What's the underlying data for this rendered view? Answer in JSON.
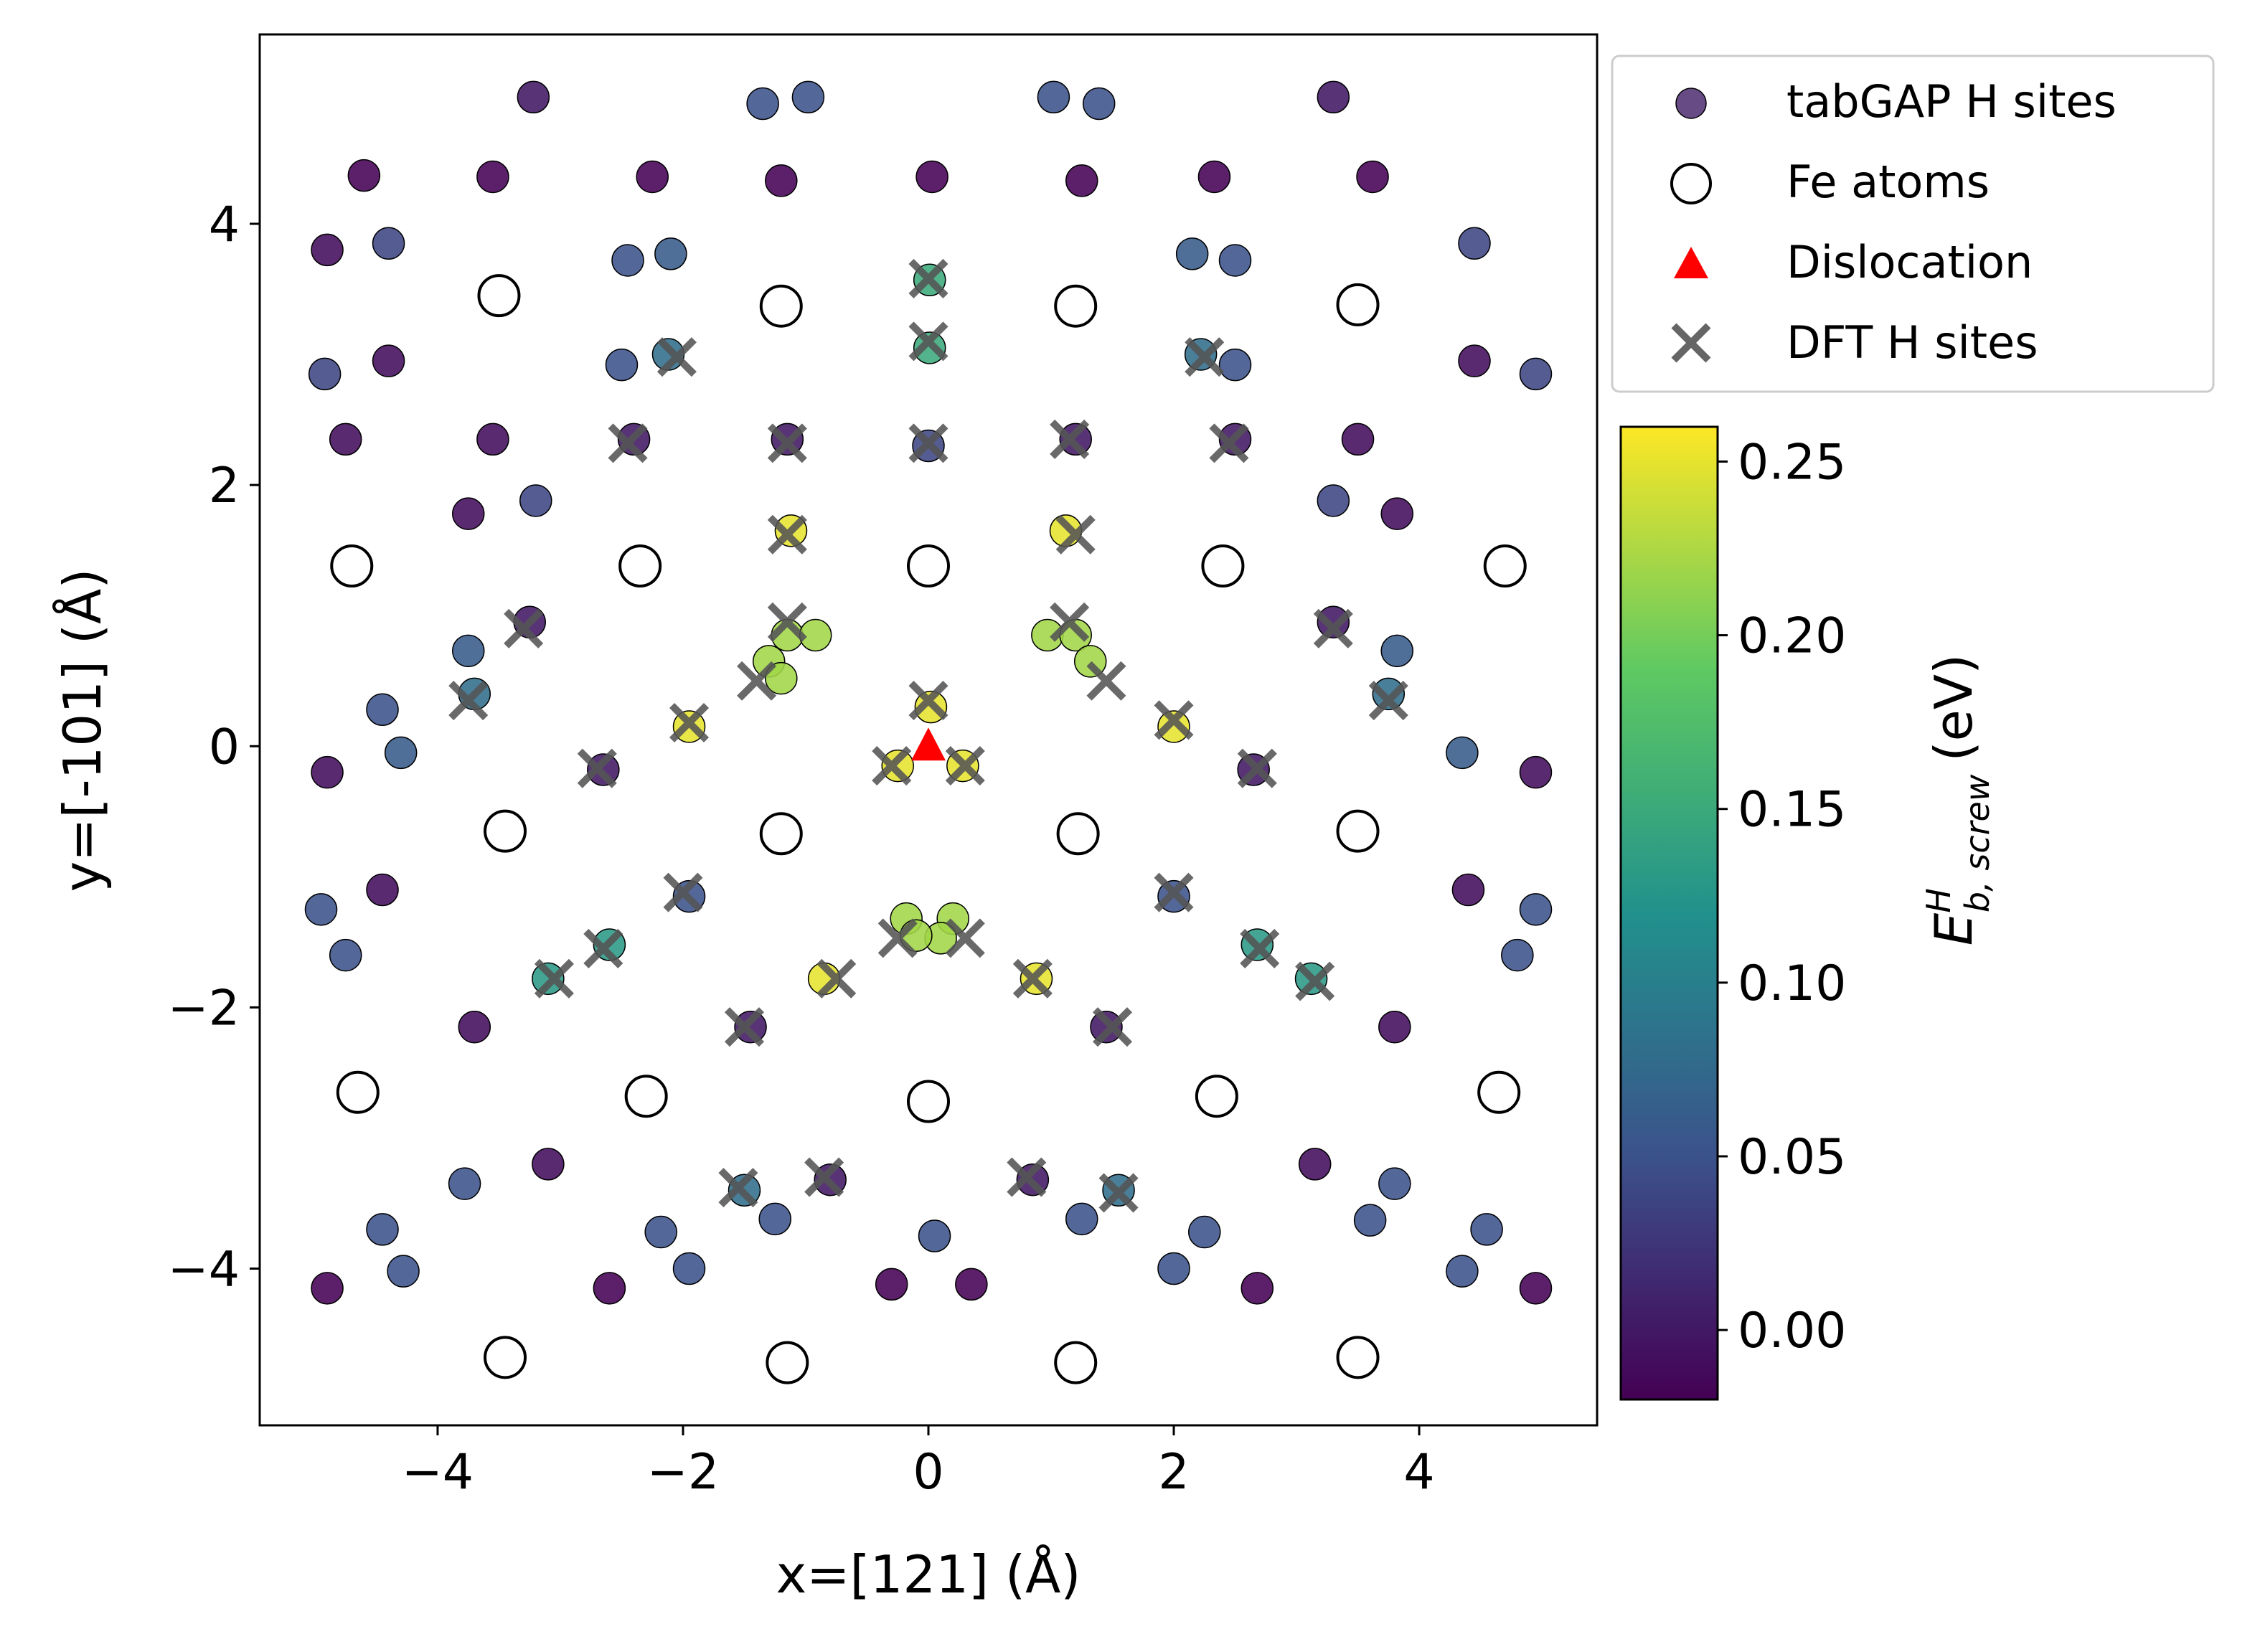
{
  "chart_data": {
    "type": "scatter",
    "xlabel": "x=[121] (Å)",
    "ylabel": "y=[-101] (Å)",
    "xlim": [
      -5.45,
      5.45
    ],
    "ylim": [
      -5.2,
      5.45
    ],
    "xticks": [
      -4,
      -2,
      0,
      2,
      4
    ],
    "yticks": [
      -4,
      -2,
      0,
      2,
      4
    ],
    "xtick_labels": [
      "−4",
      "−2",
      "0",
      "2",
      "4"
    ],
    "ytick_labels": [
      "−4",
      "−2",
      "0",
      "2",
      "4"
    ],
    "legend": {
      "placement": "upper-right outside",
      "entries": [
        "tabGAP H sites",
        "Fe atoms",
        "Dislocation",
        "DFT H sites"
      ]
    },
    "colorbar": {
      "label_base": "E",
      "label_sup": "H",
      "label_sub": "b, screw",
      "label_unit": "(eV)",
      "range": [
        -0.02,
        0.26
      ],
      "ticks": [
        0.0,
        0.05,
        0.1,
        0.15,
        0.2,
        0.25
      ],
      "tick_labels": [
        "0.00",
        "0.05",
        "0.10",
        "0.15",
        "0.20",
        "0.25"
      ],
      "colors": [
        "#440154",
        "#3b528b",
        "#21918c",
        "#5ec962",
        "#fde725"
      ]
    },
    "series": [
      {
        "name": "tabGAP H sites",
        "points": [
          [
            -3.22,
            4.97,
            0.0
          ],
          [
            -1.35,
            4.92,
            0.05
          ],
          [
            -0.98,
            4.97,
            0.05
          ],
          [
            1.02,
            4.97,
            0.05
          ],
          [
            1.39,
            4.92,
            0.05
          ],
          [
            3.3,
            4.97,
            0.0
          ],
          [
            -4.6,
            4.37,
            -0.02
          ],
          [
            -3.55,
            4.36,
            -0.02
          ],
          [
            -2.25,
            4.36,
            -0.02
          ],
          [
            -1.2,
            4.33,
            -0.02
          ],
          [
            0.03,
            4.36,
            -0.02
          ],
          [
            1.25,
            4.33,
            -0.02
          ],
          [
            2.33,
            4.36,
            -0.02
          ],
          [
            3.62,
            4.36,
            -0.02
          ],
          [
            -4.9,
            3.8,
            -0.01
          ],
          [
            -4.4,
            3.85,
            0.04
          ],
          [
            -2.45,
            3.72,
            0.05
          ],
          [
            -2.1,
            3.77,
            0.06
          ],
          [
            2.15,
            3.77,
            0.06
          ],
          [
            2.5,
            3.72,
            0.05
          ],
          [
            4.45,
            3.85,
            0.04
          ],
          [
            0.01,
            3.57,
            0.15
          ],
          [
            0.01,
            3.05,
            0.15
          ],
          [
            -2.12,
            3.0,
            0.08
          ],
          [
            2.22,
            3.0,
            0.08
          ],
          [
            -4.92,
            2.85,
            0.04
          ],
          [
            -4.4,
            2.95,
            -0.01
          ],
          [
            -2.5,
            2.92,
            0.05
          ],
          [
            2.5,
            2.92,
            0.05
          ],
          [
            4.45,
            2.95,
            -0.01
          ],
          [
            4.95,
            2.85,
            0.04
          ],
          [
            -4.75,
            2.35,
            -0.01
          ],
          [
            -3.55,
            2.35,
            -0.01
          ],
          [
            -2.4,
            2.35,
            0.0
          ],
          [
            -1.15,
            2.35,
            0.0
          ],
          [
            0.0,
            2.3,
            0.04
          ],
          [
            1.2,
            2.35,
            0.0
          ],
          [
            2.5,
            2.35,
            0.0
          ],
          [
            3.5,
            2.35,
            -0.01
          ],
          [
            -3.75,
            1.78,
            -0.01
          ],
          [
            -3.2,
            1.88,
            0.04
          ],
          [
            3.3,
            1.88,
            0.04
          ],
          [
            3.82,
            1.78,
            -0.01
          ],
          [
            -1.12,
            1.65,
            0.25
          ],
          [
            1.12,
            1.65,
            0.25
          ],
          [
            -3.25,
            0.95,
            0.0
          ],
          [
            3.3,
            0.95,
            0.0
          ],
          [
            -1.15,
            0.85,
            0.22
          ],
          [
            -0.92,
            0.85,
            0.22
          ],
          [
            0.97,
            0.85,
            0.22
          ],
          [
            1.2,
            0.85,
            0.22
          ],
          [
            -1.3,
            0.65,
            0.22
          ],
          [
            1.32,
            0.65,
            0.22
          ],
          [
            -1.2,
            0.52,
            0.22
          ],
          [
            -3.75,
            0.73,
            0.06
          ],
          [
            3.82,
            0.73,
            0.06
          ],
          [
            -3.7,
            0.4,
            0.08
          ],
          [
            3.75,
            0.4,
            0.08
          ],
          [
            -4.45,
            0.28,
            0.05
          ],
          [
            0.02,
            0.3,
            0.25
          ],
          [
            -1.95,
            0.15,
            0.25
          ],
          [
            2.0,
            0.15,
            0.25
          ],
          [
            -4.3,
            -0.05,
            0.06
          ],
          [
            4.35,
            -0.05,
            0.06
          ],
          [
            -4.9,
            -0.2,
            -0.01
          ],
          [
            -2.65,
            -0.18,
            0.0
          ],
          [
            -0.25,
            -0.15,
            0.25
          ],
          [
            0.28,
            -0.15,
            0.25
          ],
          [
            2.65,
            -0.18,
            0.0
          ],
          [
            4.95,
            -0.2,
            -0.01
          ],
          [
            -4.45,
            -1.1,
            -0.01
          ],
          [
            -1.95,
            -1.15,
            0.05
          ],
          [
            2.0,
            -1.15,
            0.05
          ],
          [
            4.4,
            -1.1,
            -0.01
          ],
          [
            -4.95,
            -1.25,
            0.05
          ],
          [
            4.95,
            -1.25,
            0.05
          ],
          [
            -4.75,
            -1.6,
            0.05
          ],
          [
            4.8,
            -1.6,
            0.05
          ],
          [
            -0.18,
            -1.32,
            0.22
          ],
          [
            0.2,
            -1.32,
            0.22
          ],
          [
            0.1,
            -1.47,
            0.22
          ],
          [
            -0.1,
            -1.45,
            0.22
          ],
          [
            -2.6,
            -1.52,
            0.13
          ],
          [
            2.68,
            -1.52,
            0.13
          ],
          [
            -3.1,
            -1.78,
            0.13
          ],
          [
            3.12,
            -1.78,
            0.13
          ],
          [
            -0.85,
            -1.78,
            0.25
          ],
          [
            0.88,
            -1.78,
            0.25
          ],
          [
            -3.7,
            -2.15,
            -0.01
          ],
          [
            -1.45,
            -2.15,
            0.0
          ],
          [
            1.45,
            -2.15,
            0.0
          ],
          [
            3.8,
            -2.15,
            -0.01
          ],
          [
            -3.1,
            -3.2,
            -0.01
          ],
          [
            3.15,
            -3.2,
            -0.01
          ],
          [
            -0.8,
            -3.32,
            0.0
          ],
          [
            0.85,
            -3.32,
            0.0
          ],
          [
            -3.78,
            -3.35,
            0.05
          ],
          [
            3.8,
            -3.35,
            0.05
          ],
          [
            -1.5,
            -3.4,
            0.08
          ],
          [
            1.55,
            -3.4,
            0.08
          ],
          [
            -1.25,
            -3.62,
            0.05
          ],
          [
            1.25,
            -3.62,
            0.05
          ],
          [
            -4.45,
            -3.7,
            0.05
          ],
          [
            -2.18,
            -3.72,
            0.05
          ],
          [
            0.05,
            -3.75,
            0.05
          ],
          [
            2.25,
            -3.72,
            0.05
          ],
          [
            3.6,
            -3.63,
            0.05
          ],
          [
            4.55,
            -3.7,
            0.05
          ],
          [
            -4.28,
            -4.02,
            0.05
          ],
          [
            -1.95,
            -4.0,
            0.05
          ],
          [
            2.0,
            -4.0,
            0.05
          ],
          [
            4.35,
            -4.02,
            0.05
          ],
          [
            -4.9,
            -4.15,
            -0.02
          ],
          [
            -2.6,
            -4.15,
            -0.02
          ],
          [
            -0.3,
            -4.12,
            -0.02
          ],
          [
            0.35,
            -4.12,
            -0.02
          ],
          [
            2.68,
            -4.15,
            -0.02
          ],
          [
            4.95,
            -4.15,
            -0.02
          ]
        ]
      },
      {
        "name": "Fe atoms",
        "points": [
          [
            -3.5,
            3.45
          ],
          [
            -1.2,
            3.37
          ],
          [
            1.2,
            3.37
          ],
          [
            3.5,
            3.38
          ],
          [
            -4.7,
            1.38
          ],
          [
            -2.35,
            1.38
          ],
          [
            0.0,
            1.38
          ],
          [
            2.4,
            1.38
          ],
          [
            4.7,
            1.38
          ],
          [
            -3.45,
            -0.65
          ],
          [
            -1.2,
            -0.67
          ],
          [
            1.22,
            -0.67
          ],
          [
            3.5,
            -0.65
          ],
          [
            -4.65,
            -2.65
          ],
          [
            -2.3,
            -2.68
          ],
          [
            0.0,
            -2.72
          ],
          [
            2.35,
            -2.68
          ],
          [
            4.65,
            -2.65
          ],
          [
            -3.45,
            -4.68
          ],
          [
            -1.15,
            -4.72
          ],
          [
            1.2,
            -4.72
          ],
          [
            3.5,
            -4.68
          ]
        ]
      },
      {
        "name": "Dislocation",
        "points": [
          [
            0.0,
            0.0
          ]
        ]
      },
      {
        "name": "DFT H sites",
        "points": [
          [
            0.0,
            3.58
          ],
          [
            0.0,
            3.1
          ],
          [
            -2.05,
            2.98
          ],
          [
            2.25,
            2.98
          ],
          [
            -2.45,
            2.32
          ],
          [
            -1.15,
            2.32
          ],
          [
            0.0,
            2.32
          ],
          [
            1.15,
            2.35
          ],
          [
            2.45,
            2.32
          ],
          [
            -1.15,
            1.62
          ],
          [
            1.2,
            1.62
          ],
          [
            -1.15,
            0.95
          ],
          [
            1.15,
            0.95
          ],
          [
            -3.3,
            0.9
          ],
          [
            3.3,
            0.9
          ],
          [
            -1.4,
            0.5
          ],
          [
            1.45,
            0.5
          ],
          [
            -3.75,
            0.35
          ],
          [
            3.75,
            0.35
          ],
          [
            0.0,
            0.35
          ],
          [
            -1.95,
            0.18
          ],
          [
            2.0,
            0.2
          ],
          [
            -2.7,
            -0.17
          ],
          [
            -0.3,
            -0.15
          ],
          [
            0.3,
            -0.15
          ],
          [
            2.68,
            -0.17
          ],
          [
            -2.0,
            -1.12
          ],
          [
            2.0,
            -1.12
          ],
          [
            -0.25,
            -1.47
          ],
          [
            0.3,
            -1.47
          ],
          [
            -2.65,
            -1.55
          ],
          [
            2.7,
            -1.55
          ],
          [
            -3.05,
            -1.78
          ],
          [
            -0.75,
            -1.78
          ],
          [
            0.85,
            -1.78
          ],
          [
            3.15,
            -1.8
          ],
          [
            -1.5,
            -2.15
          ],
          [
            1.5,
            -2.15
          ],
          [
            -0.85,
            -3.3
          ],
          [
            0.8,
            -3.3
          ],
          [
            -1.55,
            -3.38
          ],
          [
            1.55,
            -3.42
          ]
        ]
      }
    ]
  }
}
